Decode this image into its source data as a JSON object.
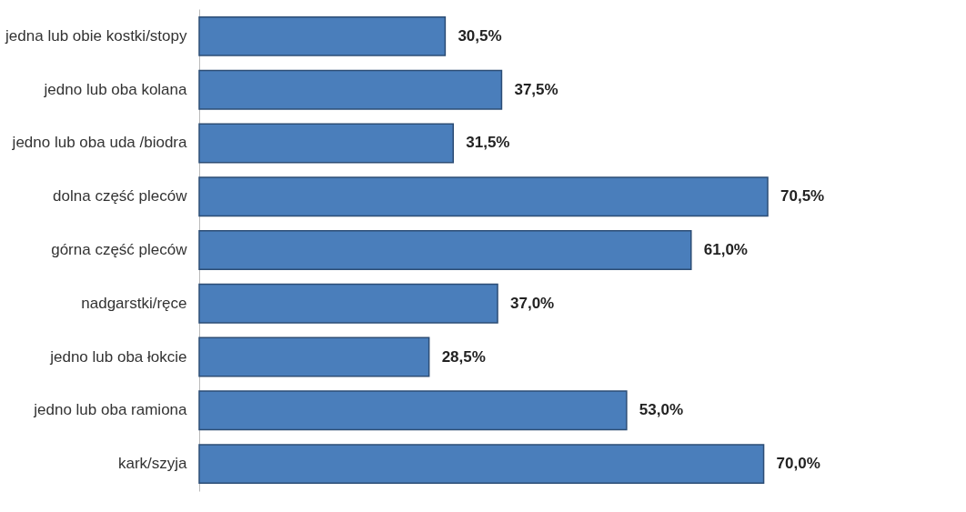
{
  "chart_data": {
    "type": "bar",
    "orientation": "horizontal",
    "categories": [
      "jedna lub obie kostki/stopy",
      "jedno lub oba kolana",
      "jedno lub oba uda /biodra",
      "dolna część pleców",
      "górna część pleców",
      "nadgarstki/ręce",
      "jedno lub oba łokcie",
      "jedno lub oba ramiona",
      "kark/szyja"
    ],
    "values": [
      30.5,
      37.5,
      31.5,
      70.5,
      61.0,
      37.0,
      28.5,
      53.0,
      70.0
    ],
    "value_labels": [
      "30,5%",
      "37,5%",
      "31,5%",
      "70,5%",
      "61,0%",
      "37,0%",
      "28,5%",
      "53,0%",
      "70,0%"
    ],
    "color": "#4a7ebb"
  }
}
